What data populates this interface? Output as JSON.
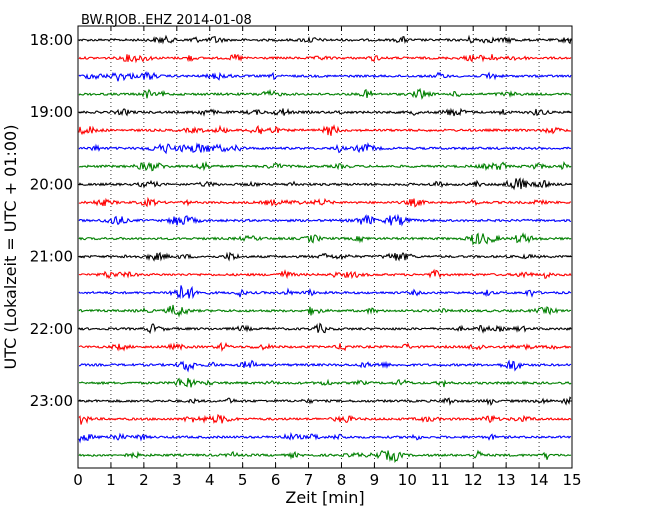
{
  "chart_data": {
    "type": "line",
    "title": "BW.RJOB..EHZ 2014-01-08",
    "xlabel": "Zeit  [min]",
    "ylabel": "UTC (Lokalzeit = UTC + 01:00)",
    "xlim": [
      0,
      15
    ],
    "xticks": [
      "0",
      "1",
      "2",
      "3",
      "4",
      "5",
      "6",
      "7",
      "8",
      "9",
      "10",
      "11",
      "12",
      "13",
      "14",
      "15"
    ],
    "ytick_labels": [
      "18:00",
      "19:00",
      "20:00",
      "21:00",
      "22:00",
      "23:00"
    ],
    "grid": "vertical dotted",
    "legend": "none",
    "colors": [
      "#000000",
      "#ff0000",
      "#0000ff",
      "#008000"
    ],
    "traces": [
      {
        "start": "18:00",
        "color": "#000000"
      },
      {
        "start": "18:15",
        "color": "#ff0000"
      },
      {
        "start": "18:30",
        "color": "#0000ff"
      },
      {
        "start": "18:45",
        "color": "#008000"
      },
      {
        "start": "19:00",
        "color": "#000000"
      },
      {
        "start": "19:15",
        "color": "#ff0000"
      },
      {
        "start": "19:30",
        "color": "#0000ff"
      },
      {
        "start": "19:45",
        "color": "#008000"
      },
      {
        "start": "20:00",
        "color": "#000000"
      },
      {
        "start": "20:15",
        "color": "#ff0000"
      },
      {
        "start": "20:30",
        "color": "#0000ff"
      },
      {
        "start": "20:45",
        "color": "#008000"
      },
      {
        "start": "21:00",
        "color": "#000000"
      },
      {
        "start": "21:15",
        "color": "#ff0000"
      },
      {
        "start": "21:30",
        "color": "#0000ff"
      },
      {
        "start": "21:45",
        "color": "#008000"
      },
      {
        "start": "22:00",
        "color": "#000000"
      },
      {
        "start": "22:15",
        "color": "#ff0000"
      },
      {
        "start": "22:30",
        "color": "#0000ff"
      },
      {
        "start": "22:45",
        "color": "#008000"
      },
      {
        "start": "23:00",
        "color": "#000000"
      },
      {
        "start": "23:15",
        "color": "#ff0000"
      },
      {
        "start": "23:30",
        "color": "#0000ff"
      },
      {
        "start": "23:45",
        "color": "#008000"
      }
    ]
  }
}
